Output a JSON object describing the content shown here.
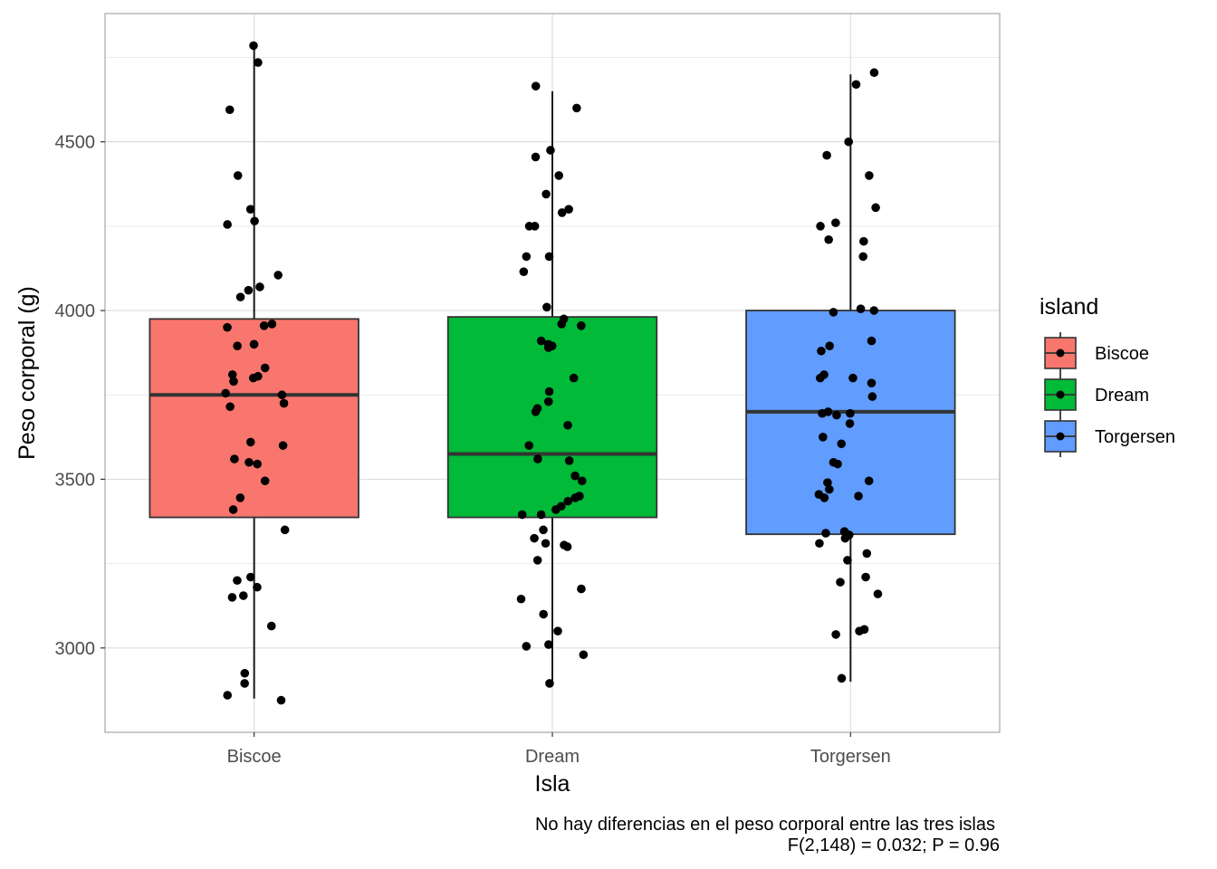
{
  "chart_data": {
    "type": "boxplot",
    "xlabel": "Isla",
    "ylabel": "Peso corporal (g)",
    "categories": [
      "Biscoe",
      "Dream",
      "Torgersen"
    ],
    "ylim": [
      2750,
      4880
    ],
    "yticks": [
      3000,
      3500,
      4000,
      4500
    ],
    "grid": true,
    "legend": {
      "title": "island",
      "position": "right",
      "entries": [
        "Biscoe",
        "Dream",
        "Torgersen"
      ]
    },
    "colors": {
      "Biscoe": "#F8766D",
      "Dream": "#00BA38",
      "Torgersen": "#619CFF"
    },
    "boxes": [
      {
        "name": "Biscoe",
        "q1": 3387,
        "median": 3750,
        "q3": 3975,
        "whisker_low": 2850,
        "whisker_high": 4775
      },
      {
        "name": "Dream",
        "q1": 3387,
        "median": 3575,
        "q3": 3981,
        "whisker_low": 2900,
        "whisker_high": 4650
      },
      {
        "name": "Torgersen",
        "q1": 3337,
        "median": 3700,
        "q3": 4000,
        "whisker_low": 2900,
        "whisker_high": 4700
      }
    ],
    "points": [
      {
        "group": "Biscoe",
        "values": [
          4785,
          4735,
          4595,
          4400,
          4300,
          4265,
          4255,
          4105,
          4070,
          4060,
          4040,
          3960,
          3955,
          3950,
          3900,
          3895,
          3830,
          3810,
          3805,
          3800,
          3790,
          3755,
          3750,
          3725,
          3715,
          3610,
          3600,
          3560,
          3550,
          3545,
          3495,
          3445,
          3410,
          3350,
          3210,
          3200,
          3180,
          3155,
          3150,
          3065,
          2925,
          2895,
          2860,
          2845
        ]
      },
      {
        "group": "Dream",
        "values": [
          4665,
          4600,
          4475,
          4455,
          4400,
          4345,
          4300,
          4290,
          4250,
          4250,
          4160,
          4160,
          4115,
          4010,
          3975,
          3960,
          3955,
          3910,
          3900,
          3895,
          3890,
          3800,
          3760,
          3730,
          3710,
          3700,
          3660,
          3600,
          3560,
          3555,
          3510,
          3495,
          3450,
          3445,
          3435,
          3420,
          3410,
          3395,
          3395,
          3350,
          3325,
          3310,
          3305,
          3300,
          3260,
          3175,
          3145,
          3100,
          3050,
          3010,
          3005,
          2980,
          2895
        ]
      },
      {
        "group": "Torgersen",
        "values": [
          4705,
          4670,
          4500,
          4460,
          4400,
          4305,
          4260,
          4250,
          4210,
          4205,
          4160,
          4005,
          4000,
          3995,
          3910,
          3895,
          3880,
          3810,
          3800,
          3800,
          3785,
          3745,
          3700,
          3695,
          3695,
          3690,
          3665,
          3625,
          3605,
          3550,
          3545,
          3495,
          3490,
          3470,
          3455,
          3450,
          3445,
          3345,
          3340,
          3335,
          3325,
          3310,
          3280,
          3260,
          3210,
          3195,
          3160,
          3055,
          3050,
          3040,
          2910
        ]
      }
    ],
    "caption_lines": [
      "No hay diferencias en el peso corporal entre las tres islas",
      "F(2,148) = 0.032; P = 0.96"
    ]
  }
}
